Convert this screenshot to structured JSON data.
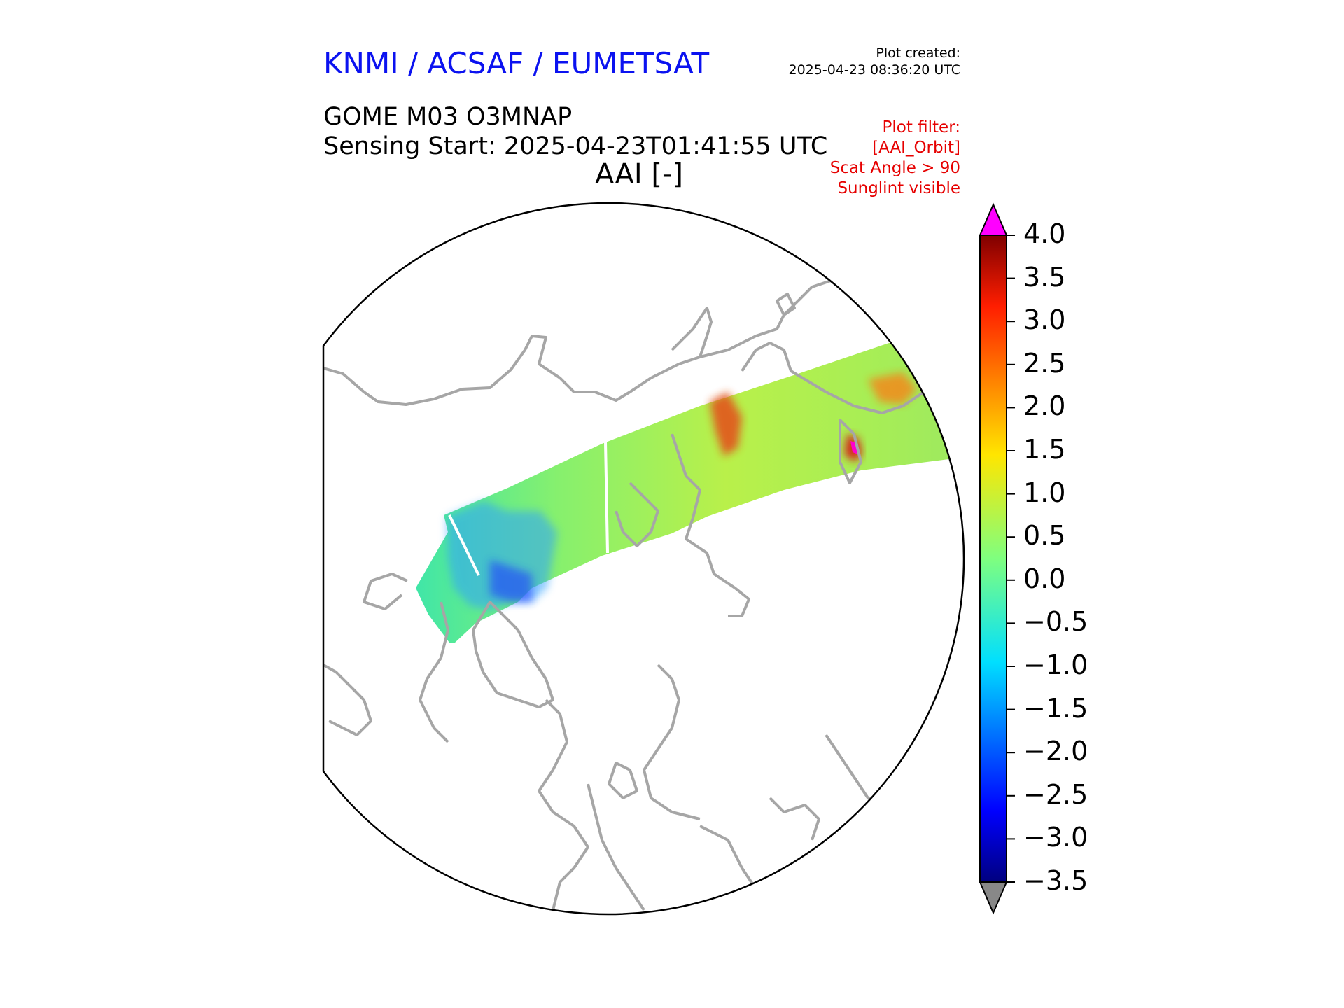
{
  "header": {
    "organization": "KNMI / ACSAF / EUMETSAT",
    "created_label": "Plot created:",
    "created_time": "2025-04-23 08:36:20 UTC",
    "product": "GOME M03 O3MNAP",
    "sensing_start": "Sensing Start: 2025-04-23T01:41:55 UTC",
    "variable": "AAI [-]"
  },
  "filter": {
    "lines": [
      "Plot filter:",
      "[AAI_Orbit]",
      "Scat Angle > 90",
      "Sunglint visible"
    ]
  },
  "colors": {
    "title": "#0b12f0",
    "filter": "#e60000",
    "coastline": "#a6a6a6",
    "over": "#ff00ff",
    "under": "#888888"
  },
  "colorbar": {
    "min": -3.5,
    "max": 4.0,
    "ticks": [
      "4.0",
      "3.5",
      "3.0",
      "2.5",
      "2.0",
      "1.5",
      "1.0",
      "0.5",
      "0.0",
      "−0.5",
      "−1.0",
      "−1.5",
      "−2.0",
      "−2.5",
      "−3.0",
      "−3.5"
    ],
    "tick_values": [
      4.0,
      3.5,
      3.0,
      2.5,
      2.0,
      1.5,
      1.0,
      0.5,
      0.0,
      -0.5,
      -1.0,
      -1.5,
      -2.0,
      -2.5,
      -3.0,
      -3.5
    ],
    "colormap": "jet"
  },
  "map": {
    "projection": "polar-stereographic-north",
    "features": [
      "coastlines",
      "satellite-swath"
    ],
    "hotspots": [
      {
        "name": "aerosol-plume-east-siberia",
        "value": 3.0
      },
      {
        "name": "aerosol-plume-kamchatka",
        "value": 4.0
      },
      {
        "name": "aerosol-plume-north-pacific",
        "value": 2.5
      }
    ]
  }
}
